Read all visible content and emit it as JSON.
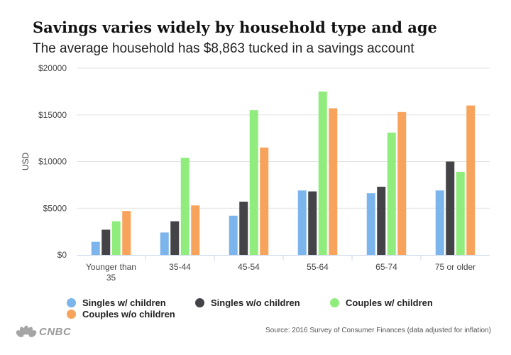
{
  "chart_data": {
    "type": "bar",
    "title": "Savings varies widely by household type and age",
    "subtitle": "The average household has $8,863 tucked in a savings account",
    "xlabel": "",
    "ylabel": "USD",
    "ylim": [
      0,
      20000
    ],
    "yticks": [
      0,
      5000,
      10000,
      15000,
      20000
    ],
    "ytick_labels": [
      "$0",
      "$5000",
      "$10000",
      "$15000",
      "$20000"
    ],
    "grid": true,
    "legend_position": "bottom",
    "categories": [
      [
        "Younger than",
        "35"
      ],
      [
        "35-44"
      ],
      [
        "45-54"
      ],
      [
        "55-64"
      ],
      [
        "65-74"
      ],
      [
        "75 or older"
      ]
    ],
    "series": [
      {
        "name": "Singles w/ children",
        "color": "#7cb5ec",
        "values": [
          1400,
          2400,
          4200,
          6900,
          6600,
          6900
        ]
      },
      {
        "name": "Singles w/o children",
        "color": "#434348",
        "values": [
          2700,
          3600,
          5700,
          6800,
          7300,
          10000
        ]
      },
      {
        "name": "Couples w/ children",
        "color": "#90ed7d",
        "values": [
          3600,
          10400,
          15500,
          17500,
          13100,
          8900
        ]
      },
      {
        "name": "Couples w/o children",
        "color": "#f7a35c",
        "values": [
          4700,
          5300,
          11500,
          15700,
          15300,
          16000
        ]
      }
    ]
  },
  "footer": {
    "logo_text": "CNBC",
    "source": "Source: 2016 Survey of Consumer Finances (data adjusted for inflation)"
  }
}
